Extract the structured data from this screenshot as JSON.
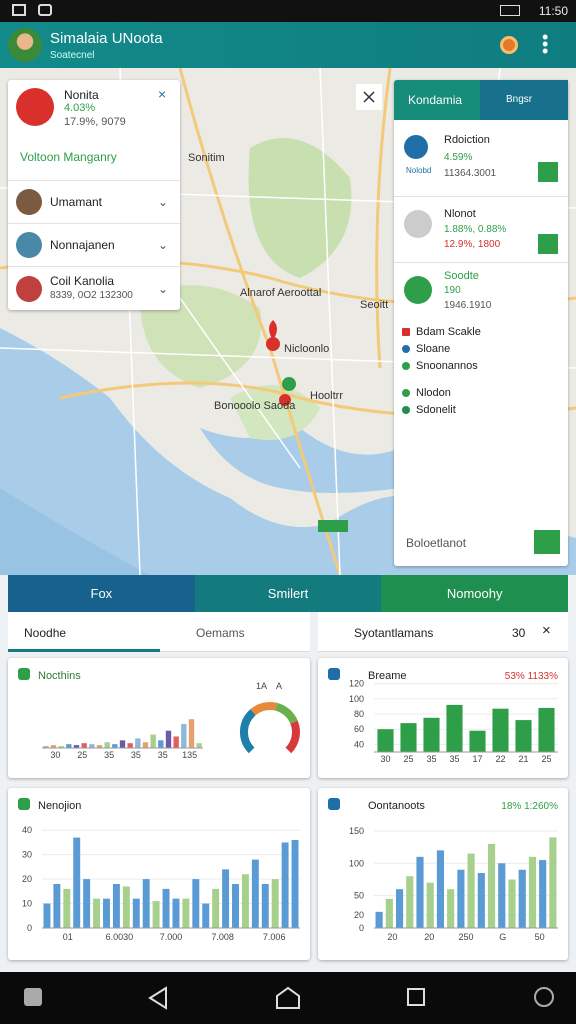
{
  "status": {
    "time": "11:50"
  },
  "app": {
    "title": "Simalaia UNoota",
    "subtitle": "Soatecnel"
  },
  "map": {
    "labels": [
      "Sonitim",
      "Alnarof Aeroottal",
      "Seoitt",
      "Nicloonlo",
      "Bonooolo Saoda",
      "Hooltrr"
    ]
  },
  "alert": {
    "title": "Nonita",
    "value": "4.03%",
    "detail": "17.9%, 9079",
    "section": "Voltoon Manganry"
  },
  "people": [
    {
      "name": "Umamant"
    },
    {
      "name": "Nonnajanen"
    },
    {
      "name": "Coil Kanolia",
      "detail": "8339, 0O2 132300"
    }
  ],
  "panel": {
    "tabs": [
      "Kondamia",
      "Bngsr"
    ],
    "items": [
      {
        "title": "Rdoiction",
        "value": "4.59%",
        "detail": "11364.3001",
        "tag": "Nolobd"
      },
      {
        "title": "Nlonot",
        "value": "1.88%, 0.88%",
        "detail": "12.9%, 1800"
      },
      {
        "title": "Soodte",
        "value": "190",
        "detail": "1946.1910"
      }
    ],
    "legend": [
      "Bdam Scakle",
      "Sloane",
      "Snoonannos",
      "Nlodon",
      "Sdonelit"
    ],
    "footer": "Boloetlanot"
  },
  "tabs": [
    "Fox",
    "Smilert",
    "Nomoohy"
  ],
  "subtabs": [
    "Noodhe",
    "Oemams",
    "Syotantlamans",
    "30"
  ],
  "charts": [
    {
      "type": "bar",
      "title": "Nocthins",
      "ylim": [
        0,
        50
      ],
      "values": [
        2,
        3,
        2,
        4,
        3,
        5,
        4,
        3,
        6,
        4,
        8,
        5,
        10,
        6,
        14,
        8,
        18,
        12,
        25,
        30,
        5
      ],
      "colors": [
        "#8fb8d8",
        "#e8a070",
        "#a8d08d",
        "#5b9bd5",
        "#6a5aa8",
        "#e06060"
      ],
      "xlabels": [
        "30",
        "25",
        "35",
        "35",
        "35",
        "135"
      ],
      "gauge": {
        "values": [
          35,
          20,
          20,
          25
        ],
        "colors": [
          "#1e7fa8",
          "#e8883a",
          "#6ab04c",
          "#d63a3a"
        ],
        "labels": [
          "1A",
          "A"
        ]
      }
    },
    {
      "type": "bar",
      "title": "Breame",
      "badge": "53% 1133%",
      "ylim": [
        30,
        130
      ],
      "yticks": [
        40,
        60,
        80,
        100,
        120
      ],
      "values": [
        60,
        68,
        75,
        92,
        58,
        87,
        72,
        88
      ],
      "colors": [
        "#2e9e48"
      ],
      "xlabels": [
        "30",
        "25",
        "35",
        "35",
        "17",
        "22",
        "21",
        "25"
      ]
    },
    {
      "type": "bar",
      "title": "Nenojion",
      "ylim": [
        0,
        45
      ],
      "yticks": [
        0,
        10,
        20,
        30,
        40
      ],
      "values": [
        10,
        18,
        16,
        37,
        20,
        12,
        12,
        18,
        17,
        12,
        20,
        11,
        16,
        12,
        12,
        20,
        10,
        16,
        24,
        18,
        22,
        28,
        18,
        20,
        35,
        36
      ],
      "colors": [
        "#5b9bd5",
        "#5b9bd5",
        "#a8d08d"
      ],
      "xlabels": [
        "01",
        "6.0030",
        "7.000",
        "7.008",
        "7.006"
      ]
    },
    {
      "type": "bar",
      "title": "Oontanoots",
      "badge": "18% 1:260%",
      "ylim": [
        0,
        170
      ],
      "yticks": [
        0,
        20,
        50,
        100,
        150
      ],
      "values": [
        25,
        45,
        60,
        80,
        110,
        70,
        120,
        60,
        90,
        115,
        85,
        130,
        100,
        75,
        90,
        110,
        105,
        140
      ],
      "colors": [
        "#5b9bd5",
        "#a8d08d"
      ],
      "xlabels": [
        "20",
        "20",
        "250",
        "G",
        "50"
      ]
    }
  ]
}
